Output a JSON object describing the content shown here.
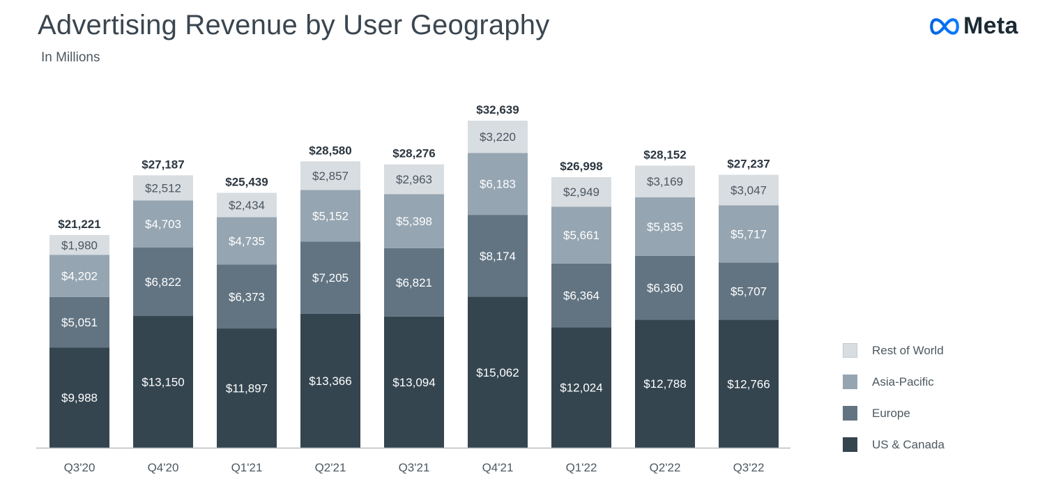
{
  "header": {
    "title": "Advertising Revenue by User Geography",
    "subtitle": "In Millions",
    "brand": "Meta"
  },
  "colors": {
    "us_canada": "#344550",
    "europe": "#627482",
    "asia_pacific": "#95a5b1",
    "rest_of_world": "#d8dde1",
    "axis": "#b7bec3"
  },
  "chart_data": {
    "type": "bar",
    "stacked": true,
    "title": "Advertising Revenue by User Geography",
    "subtitle": "In Millions",
    "categories": [
      "Q3'20",
      "Q4'20",
      "Q1'21",
      "Q2'21",
      "Q3'21",
      "Q4'21",
      "Q1'22",
      "Q2'22",
      "Q3'22"
    ],
    "series": [
      {
        "name": "US & Canada",
        "values": [
          9988,
          13150,
          11897,
          13366,
          13094,
          15062,
          12024,
          12788,
          12766
        ],
        "labels": [
          "$9,988",
          "$13,150",
          "$11,897",
          "$13,366",
          "$13,094",
          "$15,062",
          "$12,024",
          "$12,788",
          "$12,766"
        ]
      },
      {
        "name": "Europe",
        "values": [
          5051,
          6822,
          6373,
          7205,
          6821,
          8174,
          6364,
          6360,
          5707
        ],
        "labels": [
          "$5,051",
          "$6,822",
          "$6,373",
          "$7,205",
          "$6,821",
          "$8,174",
          "$6,364",
          "$6,360",
          "$5,707"
        ]
      },
      {
        "name": "Asia-Pacific",
        "values": [
          4202,
          4703,
          4735,
          5152,
          5398,
          6183,
          5661,
          5835,
          5717
        ],
        "labels": [
          "$4,202",
          "$4,703",
          "$4,735",
          "$5,152",
          "$5,398",
          "$6,183",
          "$5,661",
          "$5,835",
          "$5,717"
        ]
      },
      {
        "name": "Rest of World",
        "values": [
          1980,
          2512,
          2434,
          2857,
          2963,
          3220,
          2949,
          3169,
          3047
        ],
        "labels": [
          "$1,980",
          "$2,512",
          "$2,434",
          "$2,857",
          "$2,963",
          "$3,220",
          "$2,949",
          "$3,169",
          "$3,047"
        ]
      }
    ],
    "totals": [
      21221,
      27187,
      25439,
      28580,
      28276,
      32639,
      26998,
      28152,
      27237
    ],
    "total_labels": [
      "$21,221",
      "$27,187",
      "$25,439",
      "$28,580",
      "$28,276",
      "$32,639",
      "$26,998",
      "$28,152",
      "$27,237"
    ],
    "ylim": [
      0,
      32639
    ],
    "grid": false,
    "legend_position": "right",
    "legend": [
      "Rest of World",
      "Asia-Pacific",
      "Europe",
      "US & Canada"
    ]
  }
}
